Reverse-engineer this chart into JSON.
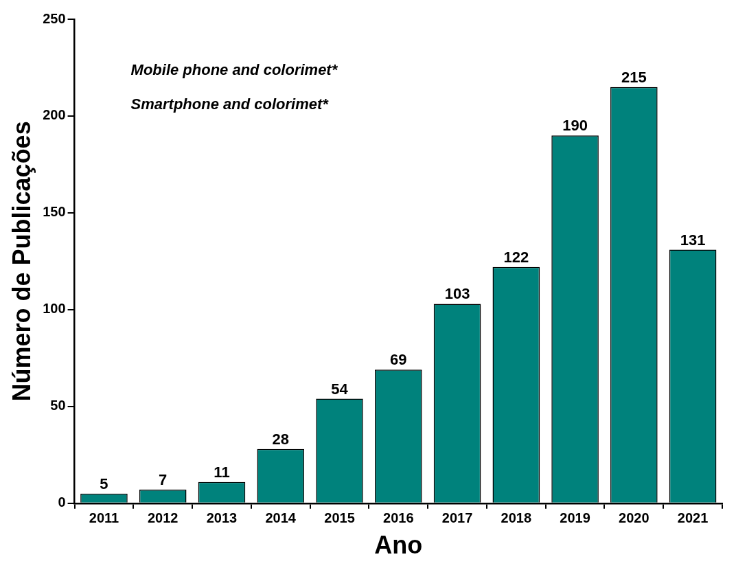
{
  "chart_data": {
    "type": "bar",
    "xlabel": "Ano",
    "ylabel": "Número de Publicações",
    "categories": [
      "2011",
      "2012",
      "2013",
      "2014",
      "2015",
      "2016",
      "2017",
      "2018",
      "2019",
      "2020",
      "2021"
    ],
    "values": [
      5,
      7,
      11,
      28,
      54,
      69,
      103,
      122,
      190,
      215,
      131
    ],
    "color": "#00827c",
    "ylim": [
      0,
      250
    ],
    "yticks": [
      0,
      50,
      100,
      150,
      200,
      250
    ],
    "data_labels": true,
    "annotations": [
      "Mobile phone and colorimet*",
      "Smartphone and colorimet*"
    ]
  }
}
